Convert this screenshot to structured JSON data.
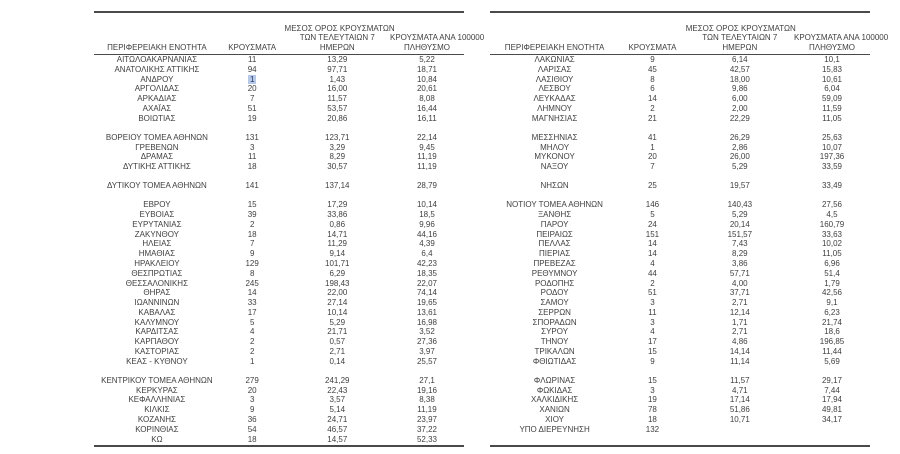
{
  "colors": {
    "page_background": "#ffffff",
    "text": "#3f3f3f",
    "border": "#4a4a4a",
    "highlight_background": "#b7c9e6",
    "highlight_text": "#1f3864"
  },
  "headers": {
    "region": "ΠΕΡΙΦΕΡΕΙΑΚΗ ΕΝΟΤΗΤΑ",
    "cases": "ΚΡΟΥΣΜΑΤΑ",
    "avg7_line1": "ΜΕΣΟΣ ΟΡΟΣ ΚΡΟΥΣΜΑΤΩΝ",
    "avg7_line2": "ΤΩΝ ΤΕΛΕΥΤΑΙΩΝ 7",
    "avg7_line3": "ΗΜΕΡΩΝ",
    "per100k_line1": "ΚΡΟΥΣΜΑΤΑ ΑΝΑ 100000",
    "per100k_line2": "ΠΛΗΘΥΣΜΟ"
  },
  "left_table": {
    "groups": [
      {
        "rows": [
          [
            "ΑΙΤΩΛΟΑΚΑΡΝΑΝΙΑΣ",
            "11",
            "13,29",
            "5,22"
          ],
          [
            "ΑΝΑΤΟΛΙΚΗΣ ΑΤΤΙΚΗΣ",
            "94",
            "97,71",
            "18,71"
          ],
          [
            "ΑΝΔΡΟΥ",
            "1",
            "1,43",
            "10,84",
            "hl"
          ],
          [
            "ΑΡΓΟΛΙΔΑΣ",
            "20",
            "16,00",
            "20,61"
          ],
          [
            "ΑΡΚΑΔΙΑΣ",
            "7",
            "11,57",
            "8,08"
          ],
          [
            "ΑΧΑΪΑΣ",
            "51",
            "53,57",
            "16,44"
          ],
          [
            "ΒΟΙΩΤΙΑΣ",
            "19",
            "20,86",
            "16,11"
          ]
        ]
      },
      {
        "rows": [
          [
            "ΒΟΡΕΙΟΥ ΤΟΜΕΑ ΑΘΗΝΩΝ",
            "131",
            "123,71",
            "22,14"
          ],
          [
            "ΓΡΕΒΕΝΩΝ",
            "3",
            "3,29",
            "9,45"
          ],
          [
            "ΔΡΑΜΑΣ",
            "11",
            "8,29",
            "11,19"
          ],
          [
            "ΔΥΤΙΚΗΣ ΑΤΤΙΚΗΣ",
            "18",
            "30,57",
            "11,19"
          ]
        ]
      },
      {
        "rows": [
          [
            "ΔΥΤΙΚΟΥ ΤΟΜΕΑ ΑΘΗΝΩΝ",
            "141",
            "137,14",
            "28,79"
          ]
        ]
      },
      {
        "rows": [
          [
            "ΕΒΡΟΥ",
            "15",
            "17,29",
            "10,14"
          ],
          [
            "ΕΥΒΟΙΑΣ",
            "39",
            "33,86",
            "18,5"
          ],
          [
            "ΕΥΡΥΤΑΝΙΑΣ",
            "2",
            "0,86",
            "9,96"
          ],
          [
            "ΖΑΚΥΝΘΟΥ",
            "18",
            "14,71",
            "44,16"
          ],
          [
            "ΗΛΕΙΑΣ",
            "7",
            "11,29",
            "4,39"
          ],
          [
            "ΗΜΑΘΙΑΣ",
            "9",
            "9,14",
            "6,4"
          ],
          [
            "ΗΡΑΚΛΕΙΟΥ",
            "129",
            "101,71",
            "42,23"
          ],
          [
            "ΘΕΣΠΡΩΤΙΑΣ",
            "8",
            "6,29",
            "18,35"
          ],
          [
            "ΘΕΣΣΑΛΟΝΙΚΗΣ",
            "245",
            "198,43",
            "22,07"
          ],
          [
            "ΘΗΡΑΣ",
            "14",
            "22,00",
            "74,14"
          ],
          [
            "ΙΩΑΝΝΙΝΩΝ",
            "33",
            "27,14",
            "19,65"
          ],
          [
            "ΚΑΒΑΛΑΣ",
            "17",
            "10,14",
            "13,61"
          ],
          [
            "ΚΑΛΥΜΝΟΥ",
            "5",
            "5,29",
            "16,98"
          ],
          [
            "ΚΑΡΔΙΤΣΑΣ",
            "4",
            "21,71",
            "3,52"
          ],
          [
            "ΚΑΡΠΑΘΟΥ",
            "2",
            "0,57",
            "27,36"
          ],
          [
            "ΚΑΣΤΟΡΙΑΣ",
            "2",
            "2,71",
            "3,97"
          ],
          [
            "ΚΕΑΣ - ΚΥΘΝΟΥ",
            "1",
            "0,14",
            "25,57"
          ]
        ]
      },
      {
        "rows": [
          [
            "ΚΕΝΤΡΙΚΟΥ ΤΟΜΕΑ ΑΘΗΝΩΝ",
            "279",
            "241,29",
            "27,1"
          ],
          [
            "ΚΕΡΚΥΡΑΣ",
            "20",
            "22,43",
            "19,16"
          ],
          [
            "ΚΕΦΑΛΛΗΝΙΑΣ",
            "3",
            "3,57",
            "8,38"
          ],
          [
            "ΚΙΛΚΙΣ",
            "9",
            "5,14",
            "11,19"
          ],
          [
            "ΚΟΖΑΝΗΣ",
            "36",
            "24,71",
            "23,97"
          ],
          [
            "ΚΟΡΙΝΘΙΑΣ",
            "54",
            "46,57",
            "37,22"
          ],
          [
            "ΚΩ",
            "18",
            "14,57",
            "52,33"
          ]
        ]
      }
    ]
  },
  "right_table": {
    "groups": [
      {
        "rows": [
          [
            "ΛΑΚΩΝΙΑΣ",
            "9",
            "6,14",
            "10,1"
          ],
          [
            "ΛΑΡΙΣΑΣ",
            "45",
            "42,57",
            "15,83"
          ],
          [
            "ΛΑΣΙΘΙΟΥ",
            "8",
            "18,00",
            "10,61"
          ],
          [
            "ΛΕΣΒΟΥ",
            "6",
            "9,86",
            "6,04"
          ],
          [
            "ΛΕΥΚΑΔΑΣ",
            "14",
            "6,00",
            "59,09"
          ],
          [
            "ΛΗΜΝΟΥ",
            "2",
            "2,00",
            "11,59"
          ],
          [
            "ΜΑΓΝΗΣΙΑΣ",
            "21",
            "22,29",
            "11,05"
          ]
        ]
      },
      {
        "rows": [
          [
            "ΜΕΣΣΗΝΙΑΣ",
            "41",
            "26,29",
            "25,63"
          ],
          [
            "ΜΗΛΟΥ",
            "1",
            "2,86",
            "10,07"
          ],
          [
            "ΜΥΚΟΝΟΥ",
            "20",
            "26,00",
            "197,36"
          ],
          [
            "ΝΑΞΟΥ",
            "7",
            "5,29",
            "33,59"
          ]
        ]
      },
      {
        "rows": [
          [
            "ΝΗΣΩΝ",
            "25",
            "19,57",
            "33,49"
          ]
        ]
      },
      {
        "rows": [
          [
            "ΝΟΤΙΟΥ ΤΟΜΕΑ ΑΘΗΝΩΝ",
            "146",
            "140,43",
            "27,56"
          ],
          [
            "ΞΑΝΘΗΣ",
            "5",
            "5,29",
            "4,5"
          ],
          [
            "ΠΑΡΟΥ",
            "24",
            "20,14",
            "160,79"
          ],
          [
            "ΠΕΙΡΑΙΩΣ",
            "151",
            "151,57",
            "33,63"
          ],
          [
            "ΠΕΛΛΑΣ",
            "14",
            "7,43",
            "10,02"
          ],
          [
            "ΠΙΕΡΙΑΣ",
            "14",
            "8,29",
            "11,05"
          ],
          [
            "ΠΡΕΒΕΖΑΣ",
            "4",
            "3,86",
            "6,96"
          ],
          [
            "ΡΕΘΥΜΝΟΥ",
            "44",
            "57,71",
            "51,4"
          ],
          [
            "ΡΟΔΟΠΗΣ",
            "2",
            "4,00",
            "1,79"
          ],
          [
            "ΡΟΔΟΥ",
            "51",
            "37,71",
            "42,56"
          ],
          [
            "ΣΑΜΟΥ",
            "3",
            "2,71",
            "9,1"
          ],
          [
            "ΣΕΡΡΩΝ",
            "11",
            "12,14",
            "6,23"
          ],
          [
            "ΣΠΟΡΑΔΩΝ",
            "3",
            "1,71",
            "21,74"
          ],
          [
            "ΣΥΡΟΥ",
            "4",
            "2,71",
            "18,6"
          ],
          [
            "ΤΗΝΟΥ",
            "17",
            "4,86",
            "196,85"
          ],
          [
            "ΤΡΙΚΑΛΩΝ",
            "15",
            "14,14",
            "11,44"
          ],
          [
            "ΦΘΙΩΤΙΔΑΣ",
            "9",
            "11,14",
            "5,69"
          ]
        ]
      },
      {
        "rows": [
          [
            "ΦΛΩΡΙΝΑΣ",
            "15",
            "11,57",
            "29,17"
          ],
          [
            "ΦΩΚΙΔΑΣ",
            "3",
            "4,71",
            "7,44"
          ],
          [
            "ΧΑΛΚΙΔΙΚΗΣ",
            "19",
            "17,14",
            "17,94"
          ],
          [
            "ΧΑΝΙΩΝ",
            "78",
            "51,86",
            "49,81"
          ],
          [
            "ΧΙΟΥ",
            "18",
            "10,71",
            "34,17"
          ],
          [
            "ΥΠΟ ΔΙΕΡΕΥΝΗΣΗ",
            "132",
            "",
            ""
          ]
        ]
      }
    ]
  }
}
